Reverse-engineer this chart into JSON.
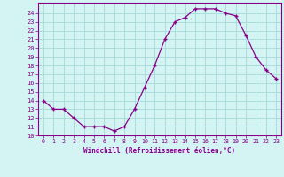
{
  "x": [
    0,
    1,
    2,
    3,
    4,
    5,
    6,
    7,
    8,
    9,
    10,
    11,
    12,
    13,
    14,
    15,
    16,
    17,
    18,
    19,
    20,
    21,
    22,
    23
  ],
  "y": [
    14,
    13,
    13,
    12,
    11,
    11,
    11,
    10.5,
    11,
    13,
    15.5,
    18,
    21,
    23,
    23.5,
    24.5,
    24.5,
    24.5,
    24,
    23.7,
    21.5,
    19,
    17.5,
    16.5
  ],
  "line_color": "#880088",
  "marker_color": "#880088",
  "bg_color": "#d4f4f4",
  "grid_color": "#aadddd",
  "plot_bg": "#d4f4f4",
  "xlabel": "Windchill (Refroidissement éolien,°C)",
  "xlabel_color": "#880088",
  "tick_color": "#880088",
  "spine_color": "#880088",
  "ylim_min": 10,
  "ylim_max": 25,
  "yticks": [
    10,
    11,
    12,
    13,
    14,
    15,
    16,
    17,
    18,
    19,
    20,
    21,
    22,
    23,
    24
  ],
  "xticks": [
    0,
    1,
    2,
    3,
    4,
    5,
    6,
    7,
    8,
    9,
    10,
    11,
    12,
    13,
    14,
    15,
    16,
    17,
    18,
    19,
    20,
    21,
    22,
    23
  ]
}
